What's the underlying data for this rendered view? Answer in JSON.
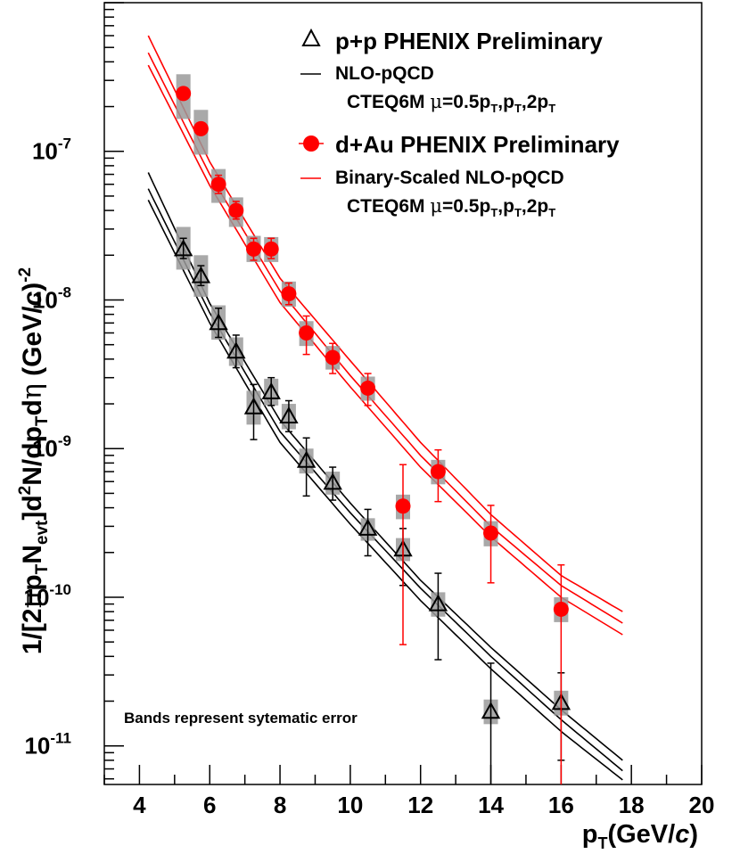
{
  "chart_data": {
    "type": "scatter",
    "y_scale": "log",
    "xlim": [
      3,
      20
    ],
    "ylim": [
      5.5e-12,
      1e-06
    ],
    "x_ticks": [
      "4",
      "6",
      "8",
      "10",
      "12",
      "14",
      "16",
      "18",
      "20"
    ],
    "y_tick_labels": [
      {
        "base": "10",
        "exp": "-11",
        "value": 1e-11
      },
      {
        "base": "10",
        "exp": "-10",
        "value": 1e-10
      },
      {
        "base": "10",
        "exp": "-9",
        "value": 1e-09
      },
      {
        "base": "10",
        "exp": "-8",
        "value": 1e-08
      },
      {
        "base": "10",
        "exp": "-7",
        "value": 1e-07
      }
    ],
    "xlabel": {
      "main": "p",
      "sub": "T",
      "rest": "(GeV/",
      "italic": "c",
      "end": ")"
    },
    "ylabel": {
      "t1": "1/[2",
      "pi": "π",
      "t2": "p",
      "s1": "T",
      "t3": "N",
      "s2": "evt",
      "t4": "]d",
      "sup2": "2",
      "t5": "N/dp",
      "s3": "T",
      "t6": "d",
      "eta": "η",
      "t7": " (GeV/",
      "italic": "c",
      "t8": ")",
      "sup": "-2"
    },
    "annotation": "Bands represent sytematic error",
    "series": [
      {
        "name": "p+p PHENIX Preliminary",
        "marker": "open-triangle",
        "color": "#000000",
        "points": [
          {
            "x": 5.25,
            "y": 2.2e-08,
            "stat_lo": 1.9e-08,
            "stat_hi": 2.6e-08,
            "sys_lo": 1.6e-08,
            "sys_hi": 3.1e-08
          },
          {
            "x": 5.75,
            "y": 1.45e-08,
            "stat_lo": 1.25e-08,
            "stat_hi": 1.7e-08,
            "sys_lo": 1.05e-08,
            "sys_hi": 2e-08
          },
          {
            "x": 6.25,
            "y": 7e-09,
            "stat_lo": 5.6e-09,
            "stat_hi": 8.8e-09,
            "sys_lo": 5.4e-09,
            "sys_hi": 9.2e-09
          },
          {
            "x": 6.75,
            "y": 4.5e-09,
            "stat_lo": 3.5e-09,
            "stat_hi": 5.8e-09,
            "sys_lo": 3.6e-09,
            "sys_hi": 5.6e-09
          },
          {
            "x": 7.25,
            "y": 1.9e-09,
            "stat_lo": 1.15e-09,
            "stat_hi": 2.7e-09,
            "sys_lo": 1.45e-09,
            "sys_hi": 2.45e-09
          },
          {
            "x": 7.75,
            "y": 2.4e-09,
            "stat_lo": 1.95e-09,
            "stat_hi": 3e-09,
            "sys_lo": 1.95e-09,
            "sys_hi": 2.95e-09
          },
          {
            "x": 8.25,
            "y": 1.65e-09,
            "stat_lo": 1.3e-09,
            "stat_hi": 2.1e-09,
            "sys_lo": 1.35e-09,
            "sys_hi": 2e-09
          },
          {
            "x": 8.75,
            "y": 8.3e-10,
            "stat_lo": 4.8e-10,
            "stat_hi": 1.18e-09,
            "sys_lo": 6.8e-10,
            "sys_hi": 1e-09
          },
          {
            "x": 9.5,
            "y": 5.9e-10,
            "stat_lo": 4.5e-10,
            "stat_hi": 7.5e-10,
            "sys_lo": 4.9e-10,
            "sys_hi": 7e-10
          },
          {
            "x": 10.5,
            "y": 2.9e-10,
            "stat_lo": 1.9e-10,
            "stat_hi": 3.9e-10,
            "sys_lo": 2.4e-10,
            "sys_hi": 3.4e-10
          },
          {
            "x": 11.5,
            "y": 2.1e-10,
            "stat_lo": 1.2e-10,
            "stat_hi": 2.9e-10,
            "sys_lo": 1.75e-10,
            "sys_hi": 2.5e-10
          },
          {
            "x": 12.5,
            "y": 9e-11,
            "stat_lo": 3.8e-11,
            "stat_hi": 1.45e-10,
            "sys_lo": 7.4e-11,
            "sys_hi": 1.08e-10
          },
          {
            "x": 14.0,
            "y": 1.7e-11,
            "stat_lo": 5.5e-12,
            "stat_hi": 3.6e-11,
            "sys_lo": 1.4e-11,
            "sys_hi": 2.05e-11
          },
          {
            "x": 16.0,
            "y": 1.95e-11,
            "stat_lo": 8e-12,
            "stat_hi": 3.1e-11,
            "sys_lo": 1.6e-11,
            "sys_hi": 2.35e-11
          }
        ]
      },
      {
        "name": "d+Au PHENIX Preliminary",
        "marker": "filled-circle",
        "color": "#ff0000",
        "points": [
          {
            "x": 5.25,
            "y": 2.45e-07,
            "stat_lo": 2.45e-07,
            "stat_hi": 2.45e-07,
            "sys_lo": 1.65e-07,
            "sys_hi": 3.3e-07
          },
          {
            "x": 5.75,
            "y": 1.42e-07,
            "stat_lo": 1.42e-07,
            "stat_hi": 1.42e-07,
            "sys_lo": 9.5e-08,
            "sys_hi": 1.9e-07
          },
          {
            "x": 6.25,
            "y": 6e-08,
            "stat_lo": 5.2e-08,
            "stat_hi": 6.9e-08,
            "sys_lo": 4.5e-08,
            "sys_hi": 7.6e-08
          },
          {
            "x": 6.75,
            "y": 4e-08,
            "stat_lo": 3.5e-08,
            "stat_hi": 4.6e-08,
            "sys_lo": 3.1e-08,
            "sys_hi": 4.9e-08
          },
          {
            "x": 7.25,
            "y": 2.2e-08,
            "stat_lo": 1.85e-08,
            "stat_hi": 2.6e-08,
            "sys_lo": 1.8e-08,
            "sys_hi": 2.7e-08
          },
          {
            "x": 7.75,
            "y": 2.2e-08,
            "stat_lo": 1.9e-08,
            "stat_hi": 2.6e-08,
            "sys_lo": 1.8e-08,
            "sys_hi": 2.65e-08
          },
          {
            "x": 8.25,
            "y": 1.1e-08,
            "stat_lo": 9.3e-09,
            "stat_hi": 1.3e-08,
            "sys_lo": 9e-09,
            "sys_hi": 1.33e-08
          },
          {
            "x": 8.75,
            "y": 6e-09,
            "stat_lo": 4.3e-09,
            "stat_hi": 7.8e-09,
            "sys_lo": 4.9e-09,
            "sys_hi": 7.2e-09
          },
          {
            "x": 9.5,
            "y": 4.1e-09,
            "stat_lo": 3.2e-09,
            "stat_hi": 5.1e-09,
            "sys_lo": 3.4e-09,
            "sys_hi": 4.9e-09
          },
          {
            "x": 10.5,
            "y": 2.55e-09,
            "stat_lo": 1.95e-09,
            "stat_hi": 3.2e-09,
            "sys_lo": 2.1e-09,
            "sys_hi": 3.05e-09
          },
          {
            "x": 11.5,
            "y": 4.1e-10,
            "stat_lo": 4.8e-11,
            "stat_hi": 7.8e-10,
            "sys_lo": 3.35e-10,
            "sys_hi": 4.9e-10
          },
          {
            "x": 12.5,
            "y": 7e-10,
            "stat_lo": 4.4e-10,
            "stat_hi": 9.8e-10,
            "sys_lo": 5.75e-10,
            "sys_hi": 8.4e-10
          },
          {
            "x": 14.0,
            "y": 2.7e-10,
            "stat_lo": 1.25e-10,
            "stat_hi": 4.15e-10,
            "sys_lo": 2.2e-10,
            "sys_hi": 3.25e-10
          },
          {
            "x": 16.0,
            "y": 8.3e-11,
            "stat_lo": 5.5e-12,
            "stat_hi": 1.65e-10,
            "sys_lo": 6.8e-11,
            "sys_hi": 1e-10
          }
        ]
      }
    ],
    "theory_curves": [
      {
        "name": "NLO-pQCD CTEQ6M mu=0.5pT",
        "color": "#000000",
        "y_at_x": [
          [
            4.25,
            7.2e-08
          ],
          [
            6,
            9.5e-09
          ],
          [
            8,
            1.55e-09
          ],
          [
            10,
            4.3e-10
          ],
          [
            12,
            1.3e-10
          ],
          [
            14,
            4.6e-11
          ],
          [
            16,
            1.75e-11
          ],
          [
            17.75,
            8e-12
          ]
        ]
      },
      {
        "name": "NLO-pQCD CTEQ6M mu=pT",
        "color": "#000000",
        "y_at_x": [
          [
            4.25,
            5.6e-08
          ],
          [
            6,
            8.2e-09
          ],
          [
            8,
            1.3e-09
          ],
          [
            10,
            3.7e-10
          ],
          [
            12,
            1.15e-10
          ],
          [
            14,
            4e-11
          ],
          [
            16,
            1.5e-11
          ],
          [
            17.75,
            6.8e-12
          ]
        ]
      },
      {
        "name": "NLO-pQCD CTEQ6M mu=2pT",
        "color": "#000000",
        "y_at_x": [
          [
            4.25,
            4.7e-08
          ],
          [
            6,
            7e-09
          ],
          [
            8,
            1.1e-09
          ],
          [
            10,
            3.1e-10
          ],
          [
            12,
            9.5e-11
          ],
          [
            14,
            3.3e-11
          ],
          [
            16,
            1.25e-11
          ],
          [
            17.75,
            5.9e-12
          ]
        ]
      },
      {
        "name": "Binary-Scaled NLO-pQCD CTEQ6M mu=0.5pT",
        "color": "#ff0000",
        "y_at_x": [
          [
            4.25,
            6e-07
          ],
          [
            6,
            8.5e-08
          ],
          [
            8,
            1.4e-08
          ],
          [
            10,
            3.9e-09
          ],
          [
            12,
            1.1e-09
          ],
          [
            14,
            3.6e-10
          ],
          [
            16,
            1.4e-10
          ],
          [
            17.75,
            8e-11
          ]
        ]
      },
      {
        "name": "Binary-Scaled NLO-pQCD CTEQ6M mu=pT",
        "color": "#ff0000",
        "y_at_x": [
          [
            4.25,
            4.6e-07
          ],
          [
            6,
            7e-08
          ],
          [
            8,
            1.15e-08
          ],
          [
            10,
            3.1e-09
          ],
          [
            12,
            9e-10
          ],
          [
            14,
            3e-10
          ],
          [
            16,
            1.2e-10
          ],
          [
            17.75,
            6.7e-11
          ]
        ]
      },
      {
        "name": "Binary-Scaled NLO-pQCD CTEQ6M mu=2pT",
        "color": "#ff0000",
        "y_at_x": [
          [
            4.25,
            3.8e-07
          ],
          [
            6,
            5.9e-08
          ],
          [
            8,
            9.6e-09
          ],
          [
            10,
            2.6e-09
          ],
          [
            12,
            7.5e-10
          ],
          [
            14,
            2.55e-10
          ],
          [
            16,
            1e-10
          ],
          [
            17.75,
            5.6e-11
          ]
        ]
      }
    ],
    "legend": {
      "placement": "top-right",
      "entries": [
        {
          "marker": "open-triangle",
          "text": "p+p PHENIX Preliminary"
        },
        {
          "marker": "black-line",
          "text": "NLO-pQCD"
        },
        {
          "marker": "none",
          "prefix": "CTEQ6M",
          "mu": "μ",
          "tail": "=0.5p",
          "sub1": "T",
          "sep1": ",p",
          "sub2": "T",
          "sep2": ",2p",
          "sub3": "T"
        },
        {
          "marker": "filled-circle",
          "text": "d+Au PHENIX Preliminary"
        },
        {
          "marker": "red-line",
          "text": "Binary-Scaled NLO-pQCD"
        },
        {
          "marker": "none",
          "prefix": "CTEQ6M",
          "mu": "μ",
          "tail": "=0.5p",
          "sub1": "T",
          "sep1": ",p",
          "sub2": "T",
          "sep2": ",2p",
          "sub3": "T"
        }
      ]
    }
  }
}
